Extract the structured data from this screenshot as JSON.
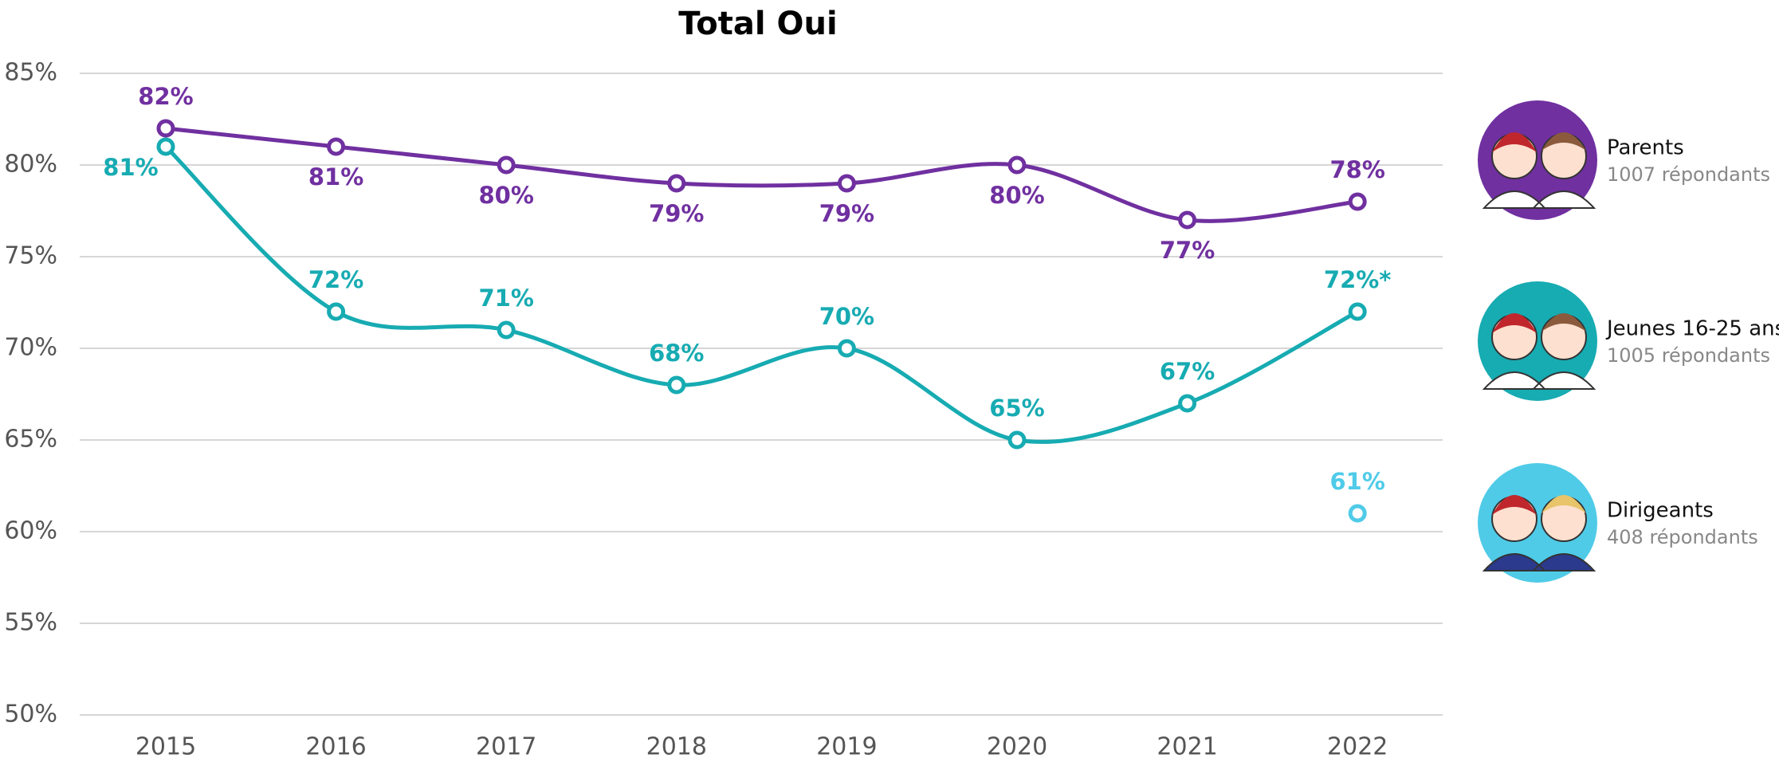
{
  "chart_data": {
    "type": "line",
    "title": "Total Oui",
    "x": [
      "2015",
      "2016",
      "2017",
      "2018",
      "2019",
      "2020",
      "2021",
      "2022"
    ],
    "ylim": [
      50,
      85
    ],
    "yticks": [
      {
        "value": 50,
        "label": "50%"
      },
      {
        "value": 55,
        "label": "55%"
      },
      {
        "value": 60,
        "label": "60%"
      },
      {
        "value": 65,
        "label": "65%"
      },
      {
        "value": 70,
        "label": "70%"
      },
      {
        "value": 75,
        "label": "75%"
      },
      {
        "value": 80,
        "label": "80%"
      },
      {
        "value": 85,
        "label": "85%"
      }
    ],
    "grid": true,
    "series": [
      {
        "name": "Parents",
        "respondents": "1007 répondants",
        "color": "#7030a0",
        "values": [
          82,
          81,
          80,
          79,
          79,
          80,
          77,
          78
        ],
        "value_labels": [
          "82%",
          "81%",
          "80%",
          "79%",
          "79%",
          "80%",
          "77%",
          "78%"
        ]
      },
      {
        "name": "Jeunes 16-25 ans",
        "respondents": "1005 répondants",
        "color": "#17abb2",
        "values": [
          81,
          72,
          71,
          68,
          70,
          65,
          67,
          72
        ],
        "value_labels": [
          "81%",
          "72%",
          "71%",
          "68%",
          "70%",
          "65%",
          "67%",
          "72%*"
        ]
      },
      {
        "name": "Dirigeants",
        "respondents": "408 répondants",
        "color": "#4fcbe8",
        "values": [
          null,
          null,
          null,
          null,
          null,
          null,
          null,
          61
        ],
        "value_labels": [
          null,
          null,
          null,
          null,
          null,
          null,
          null,
          "61%"
        ]
      }
    ]
  }
}
